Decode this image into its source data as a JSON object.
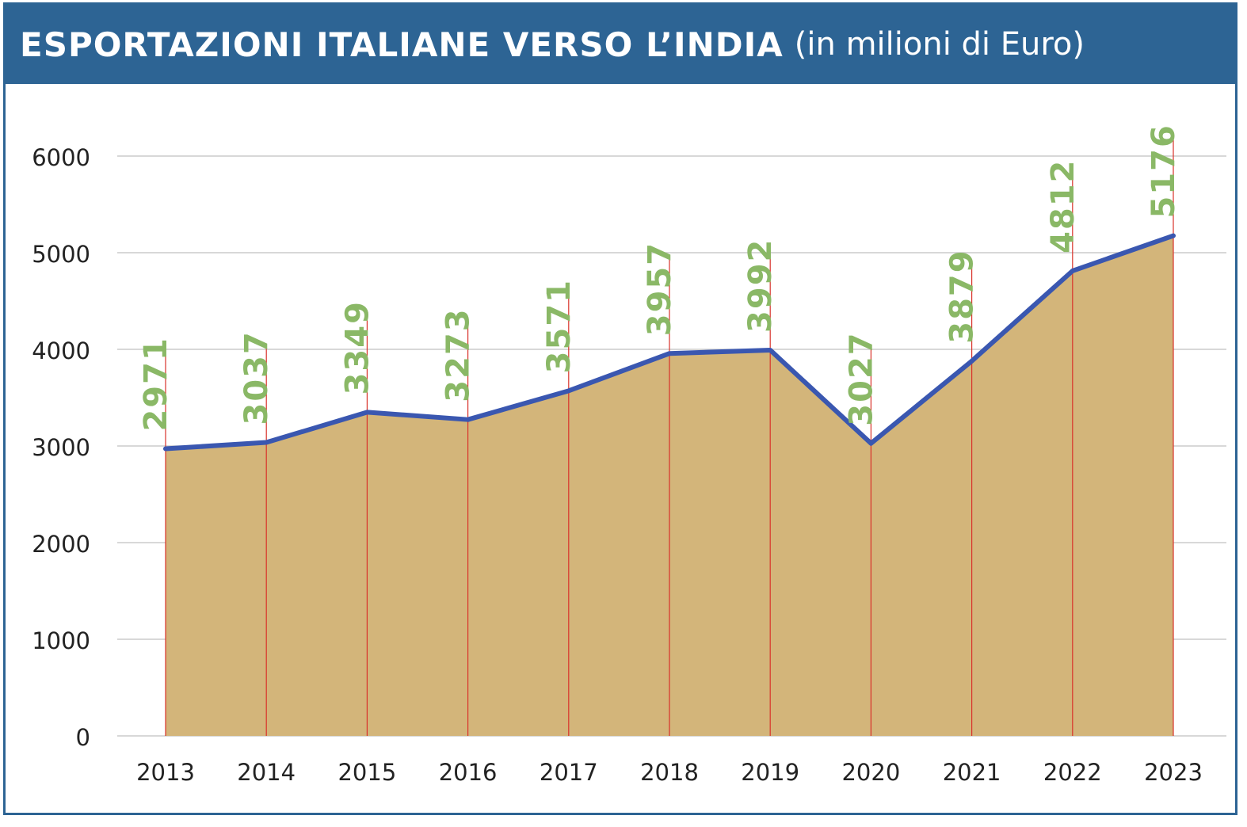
{
  "header": {
    "title": "ESPORTAZIONI ITALIANE VERSO L’INDIA",
    "subtitle": "(in milioni di Euro)"
  },
  "colors": {
    "header_bg": "#2d6494",
    "area_fill": "#d3b57a",
    "line": "#3a57b0",
    "drop_lines": "#d9332b",
    "data_labels": "#8ab866",
    "grid": "#cccccc"
  },
  "chart_data": {
    "type": "area",
    "title": "ESPORTAZIONI ITALIANE VERSO L’INDIA",
    "subtitle": "(in milioni di Euro)",
    "categories": [
      "2013",
      "2014",
      "2015",
      "2016",
      "2017",
      "2018",
      "2019",
      "2020",
      "2021",
      "2022",
      "2023"
    ],
    "values": [
      2971,
      3037,
      3349,
      3273,
      3571,
      3957,
      3992,
      3027,
      3879,
      4812,
      5176
    ],
    "data_labels": [
      "2971",
      "3037",
      "3349",
      "3273",
      "3571",
      "3957",
      "3992",
      "3027",
      "3879",
      "4812",
      "5176"
    ],
    "ylim": [
      0,
      6000
    ],
    "yticks": [
      "0",
      "1000",
      "2000",
      "3000",
      "4000",
      "5000",
      "6000"
    ],
    "xlabel": "",
    "ylabel": "",
    "grid": true,
    "legend": "none"
  }
}
